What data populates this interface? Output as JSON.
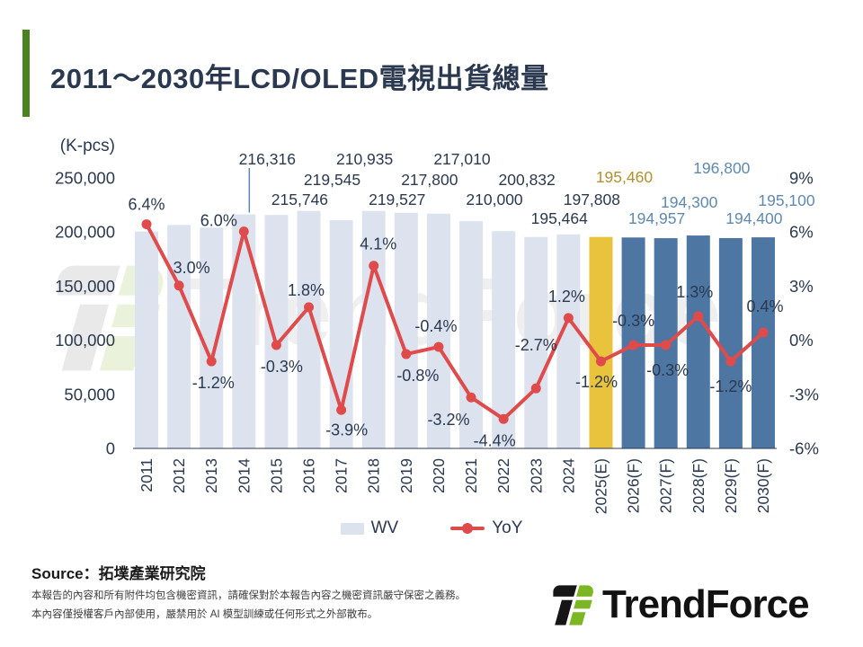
{
  "title": "2011～2030年LCD/OLED電視出貨總量",
  "unit_label": "(K-pcs)",
  "legend": {
    "wv_label": "WV",
    "yoy_label": "YoY"
  },
  "source_label": "Source：拓墣產業研究院",
  "disclaimer": [
    "本報告的內容和所有附件均包含機密資訊，請確保對於本報告內容之機密資訊嚴守保密之義務。",
    "本內容僅授權客戶內部使用，嚴禁用於 AI 模型訓練或任何形式之外部散布。"
  ],
  "brand": {
    "logo_text": "TrendForce",
    "watermark_text": "TrendForce"
  },
  "colors": {
    "accent_green": "#4a8220",
    "logo_green": "#7cb623",
    "navy_text": "#2b3950",
    "bar_light": "#dce3ef",
    "bar_gold": "#eac33d",
    "bar_blue": "#4d76a2",
    "label_gold": "#b1902f",
    "label_blue": "#6089af",
    "line_red": "#df4b4b",
    "callout_blue": "#5b87b0"
  },
  "chart_data": {
    "type": "combo",
    "title": "2011～2030年LCD/OLED電視出貨總量",
    "unit": "K-pcs",
    "grid": false,
    "legend_position": "bottom",
    "categories": [
      "2011",
      "2012",
      "2013",
      "2014",
      "2015",
      "2016",
      "2017",
      "2018",
      "2019",
      "2020",
      "2021",
      "2022",
      "2023",
      "2024",
      "2025(E)",
      "2026(F)",
      "2027(F)",
      "2028(F)",
      "2029(F)",
      "2030(F)"
    ],
    "series": [
      {
        "name": "WV",
        "type": "bar",
        "values": [
          200500,
          206500,
          204100,
          216316,
          215746,
          219545,
          210935,
          219527,
          217800,
          217010,
          210000,
          200832,
          195464,
          197808,
          195460,
          194957,
          194300,
          196800,
          194400,
          195100
        ],
        "data_labels": [
          null,
          null,
          null,
          "216,316",
          "215,746",
          "219,545",
          "210,935",
          "219,527",
          "217,800",
          "217,010",
          "210,000",
          "200,832",
          "195,464",
          "197,808",
          "195,460",
          "194,957",
          "194,300",
          "196,800",
          "194,400",
          "195,100"
        ]
      },
      {
        "name": "YoY",
        "type": "line",
        "values": [
          6.4,
          3.0,
          -1.2,
          6.0,
          -0.3,
          1.8,
          -3.9,
          4.1,
          -0.8,
          -0.4,
          -3.2,
          -4.4,
          -2.7,
          1.2,
          -1.2,
          -0.3,
          -0.3,
          1.3,
          -1.2,
          0.4
        ],
        "data_labels": [
          "6.4%",
          "3.0%",
          "-1.2%",
          "6.0%",
          "-0.3%",
          "1.8%",
          "-3.9%",
          "4.1%",
          "-0.8%",
          "-0.4%",
          "-3.2%",
          "-4.4%",
          "-2.7%",
          "1.2%",
          "-1.2%",
          "-0.3%",
          "-0.3%",
          "1.3%",
          "-1.2%",
          "0.4%"
        ]
      }
    ],
    "y_left_axis": {
      "label": "(K-pcs)",
      "min": 0,
      "max": 250000,
      "ticks": [
        "250,000",
        "200,000",
        "150,000",
        "100,000",
        "50,000",
        "0"
      ]
    },
    "y_right_axis": {
      "min": -6,
      "max": 9,
      "ticks": [
        "9%",
        "6%",
        "3%",
        "0%",
        "-3%",
        "-6%"
      ]
    }
  }
}
